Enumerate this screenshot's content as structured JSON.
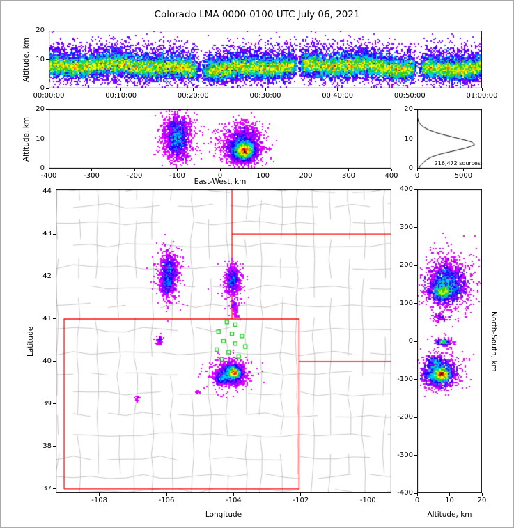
{
  "title": "Colorado LMA 0000-0100 UTC July 06, 2021",
  "axis_labels": {
    "time_height_y": "Altitude, km",
    "ew_y": "Altitude, km",
    "ew_x": "East-West, km",
    "map_y": "Latitude",
    "map_x": "Longitude",
    "ns_x": "Altitude, km",
    "ns_y_right": "North-South, km"
  },
  "colors": {
    "state_border": "#ff0000",
    "county_line": "#c6c6c6",
    "station": "#00cc00",
    "histogram_line": "#000000",
    "axis": "#000000",
    "background": "#ffffff",
    "speckle_dark": "#0d0d0d",
    "speckle_light": "#e6e6e6"
  },
  "chart_data": {
    "type": "scatter",
    "description": "Lightning Mapping Array VHF source density: time-height, east-west height, plan view map, north-south height, and altitude histogram panels",
    "speckle_above": 0.96,
    "colormap_stops": [
      [
        0.0,
        "#e000ff"
      ],
      [
        0.035,
        "#8000ff"
      ],
      [
        0.07,
        "#2200ff"
      ],
      [
        0.11,
        "#0077ff"
      ],
      [
        0.16,
        "#00ccff"
      ],
      [
        0.22,
        "#00dd77"
      ],
      [
        0.29,
        "#33cc00"
      ],
      [
        0.37,
        "#bbee00"
      ],
      [
        0.46,
        "#ffff00"
      ],
      [
        0.56,
        "#ffaa00"
      ],
      [
        0.66,
        "#ff5500"
      ],
      [
        0.76,
        "#ee0000"
      ],
      [
        0.85,
        "#aa0000"
      ],
      [
        0.92,
        "#500000"
      ]
    ],
    "panels": {
      "time_height": {
        "xlim": [
          0,
          3600
        ],
        "ylim": [
          0,
          20
        ],
        "x_ticks": [
          {
            "v": 0,
            "label": "00:00:00"
          },
          {
            "v": 600,
            "label": "00:10:00"
          },
          {
            "v": 1200,
            "label": "00:20:00"
          },
          {
            "v": 1800,
            "label": "00:30:00"
          },
          {
            "v": 2400,
            "label": "00:40:00"
          },
          {
            "v": 3000,
            "label": "00:50:00"
          },
          {
            "v": 3600,
            "label": "01:00:00"
          }
        ],
        "y_ticks": [
          {
            "v": 0,
            "label": "0"
          },
          {
            "v": 10,
            "label": "10"
          },
          {
            "v": 20,
            "label": "20"
          }
        ],
        "bands": [
          {
            "t0": 0,
            "t1": 3600,
            "alt": 7.3,
            "sig": 1.8,
            "n": 26000
          },
          {
            "t0": 0,
            "t1": 3600,
            "alt": 7.8,
            "sig": 3.4,
            "n": 7000
          },
          {
            "t0": 0,
            "t1": 3600,
            "alt": 12.5,
            "sig": 2.2,
            "n": 1500
          }
        ],
        "gaps": [
          {
            "t": 1265,
            "w": 45
          },
          {
            "t": 2075,
            "w": 35
          },
          {
            "t": 3070,
            "w": 45
          }
        ]
      },
      "ew_height": {
        "xlim": [
          -400,
          400
        ],
        "ylim": [
          0,
          20
        ],
        "x_ticks": [
          {
            "v": -400,
            "label": "-400"
          },
          {
            "v": -300,
            "label": "-300"
          },
          {
            "v": -200,
            "label": "-200"
          },
          {
            "v": -100,
            "label": "-100"
          },
          {
            "v": 0,
            "label": "0"
          },
          {
            "v": 100,
            "label": "100"
          },
          {
            "v": 200,
            "label": "200"
          },
          {
            "v": 300,
            "label": "300"
          },
          {
            "v": 400,
            "label": "400"
          }
        ],
        "y_ticks": [
          {
            "v": 0,
            "label": "0"
          },
          {
            "v": 10,
            "label": "10"
          },
          {
            "v": 20,
            "label": "20"
          }
        ],
        "clusters": [
          {
            "x": -100,
            "y": 9.5,
            "sx": 13,
            "sy": 3.2,
            "n": 1600
          },
          {
            "x": -100,
            "y": 11,
            "sx": 22,
            "sy": 4.2,
            "n": 500
          },
          {
            "x": -103,
            "y": 14.5,
            "sx": 14,
            "sy": 1.8,
            "n": 250
          },
          {
            "x": 55,
            "y": 6.3,
            "sx": 17,
            "sy": 2.1,
            "n": 2800
          },
          {
            "x": 58,
            "y": 6.0,
            "sx": 8,
            "sy": 1.2,
            "n": 1400
          },
          {
            "x": 48,
            "y": 8.5,
            "sx": 28,
            "sy": 3.5,
            "n": 800
          },
          {
            "x": 60,
            "y": 12,
            "sx": 15,
            "sy": 2,
            "n": 250
          }
        ]
      },
      "histogram": {
        "xlim": [
          0,
          7000
        ],
        "ylim": [
          0,
          20
        ],
        "x_ticks": [
          {
            "v": 0,
            "label": "0"
          },
          {
            "v": 5000,
            "label": "5000"
          }
        ],
        "y_ticks": [
          {
            "v": 0,
            "label": "0"
          },
          {
            "v": 10,
            "label": "10"
          },
          {
            "v": 20,
            "label": "20"
          }
        ],
        "annotation": "216,472 sources",
        "profile": {
          "alt_km": [
            0,
            1,
            2,
            3,
            4,
            5,
            6,
            7,
            8,
            9,
            10,
            11,
            12,
            13,
            14,
            15,
            16,
            17,
            18,
            19,
            20
          ],
          "counts": [
            150,
            350,
            650,
            1000,
            1600,
            2600,
            4000,
            5300,
            6200,
            5900,
            4700,
            3400,
            2200,
            1300,
            700,
            330,
            140,
            50,
            15,
            4,
            0
          ]
        }
      },
      "plan_view": {
        "xlim": [
          -109.3,
          -99.3
        ],
        "ylim": [
          36.9,
          44.05
        ],
        "x_ticks": [
          {
            "v": -108,
            "label": "-108"
          },
          {
            "v": -106,
            "label": "-106"
          },
          {
            "v": -104,
            "label": "-104"
          },
          {
            "v": -102,
            "label": "-102"
          },
          {
            "v": -100,
            "label": "-100"
          }
        ],
        "y_ticks": [
          {
            "v": 37,
            "label": "37"
          },
          {
            "v": 38,
            "label": "38"
          },
          {
            "v": 39,
            "label": "39"
          },
          {
            "v": 40,
            "label": "40"
          },
          {
            "v": 41,
            "label": "41"
          },
          {
            "v": 42,
            "label": "42"
          },
          {
            "v": 43,
            "label": "43"
          },
          {
            "v": 44,
            "label": "44"
          }
        ],
        "clusters": [
          {
            "x": -105.9,
            "y": 42.18,
            "sx": 0.12,
            "sy": 0.17,
            "n": 800
          },
          {
            "x": -105.98,
            "y": 41.8,
            "sx": 0.1,
            "sy": 0.13,
            "n": 550
          },
          {
            "x": -105.92,
            "y": 42.0,
            "sx": 0.22,
            "sy": 0.34,
            "n": 260
          },
          {
            "x": -104.02,
            "y": 41.93,
            "sx": 0.1,
            "sy": 0.15,
            "n": 600
          },
          {
            "x": -104.0,
            "y": 41.78,
            "sx": 0.17,
            "sy": 0.28,
            "n": 200
          },
          {
            "x": -103.97,
            "y": 41.33,
            "sx": 0.05,
            "sy": 0.09,
            "n": 60
          },
          {
            "x": -104.05,
            "y": 39.72,
            "sx": 0.18,
            "sy": 0.12,
            "n": 1900
          },
          {
            "x": -103.97,
            "y": 39.74,
            "sx": 0.075,
            "sy": 0.055,
            "n": 950
          },
          {
            "x": -104.38,
            "y": 39.6,
            "sx": 0.1,
            "sy": 0.07,
            "n": 350
          },
          {
            "x": -104.1,
            "y": 39.73,
            "sx": 0.32,
            "sy": 0.2,
            "n": 320
          },
          {
            "x": -106.2,
            "y": 40.5,
            "sx": 0.05,
            "sy": 0.07,
            "n": 60
          },
          {
            "x": -106.87,
            "y": 39.12,
            "sx": 0.035,
            "sy": 0.035,
            "n": 25
          },
          {
            "x": -105.07,
            "y": 39.26,
            "sx": 0.03,
            "sy": 0.03,
            "n": 12
          },
          {
            "x": -103.95,
            "y": 41.12,
            "sx": 0.05,
            "sy": 0.05,
            "n": 20
          }
        ]
      },
      "ns_height": {
        "xlim": [
          0,
          20
        ],
        "ylim": [
          -400,
          400
        ],
        "x_ticks": [
          {
            "v": 0,
            "label": "0"
          },
          {
            "v": 10,
            "label": "10"
          },
          {
            "v": 20,
            "label": "20"
          }
        ],
        "y_ticks": [
          {
            "v": 400,
            "label": "400"
          },
          {
            "v": 300,
            "label": "300"
          },
          {
            "v": 200,
            "label": "200"
          },
          {
            "v": 100,
            "label": "100"
          },
          {
            "v": 0,
            "label": "0"
          },
          {
            "v": -100,
            "label": "-100"
          },
          {
            "v": -200,
            "label": "-200"
          },
          {
            "v": -300,
            "label": "-300"
          },
          {
            "v": -400,
            "label": "-400"
          }
        ],
        "clusters": [
          {
            "x": 9,
            "y": 150,
            "sx": 3.0,
            "sy": 26,
            "n": 1700
          },
          {
            "x": 8,
            "y": 128,
            "sx": 1.5,
            "sy": 11,
            "n": 800
          },
          {
            "x": 10,
            "y": 165,
            "sx": 4.5,
            "sy": 42,
            "n": 450
          },
          {
            "x": 7,
            "y": 62,
            "sx": 1.3,
            "sy": 7,
            "n": 70
          },
          {
            "x": 8,
            "y": -2,
            "sx": 1.5,
            "sy": 6,
            "n": 170
          },
          {
            "x": 8,
            "y": -3,
            "sx": 0.8,
            "sy": 3,
            "n": 90
          },
          {
            "x": 7,
            "y": -85,
            "sx": 2.3,
            "sy": 17,
            "n": 1600
          },
          {
            "x": 7.5,
            "y": -88,
            "sx": 1.1,
            "sy": 8,
            "n": 850
          },
          {
            "x": 5.5,
            "y": -50,
            "sx": 1.3,
            "sy": 7,
            "n": 160
          },
          {
            "x": 8,
            "y": -78,
            "sx": 3.5,
            "sy": 28,
            "n": 320
          }
        ]
      }
    },
    "map_overlays": {
      "state_lines": [
        [
          [
            -109.05,
            37.0
          ],
          [
            -109.05,
            41.0
          ],
          [
            -102.05,
            41.0
          ],
          [
            -102.05,
            37.0
          ],
          [
            -109.05,
            37.0
          ]
        ],
        [
          [
            -104.05,
            44.05
          ],
          [
            -104.05,
            41.0
          ]
        ],
        [
          [
            -104.05,
            43.0
          ],
          [
            -99.3,
            43.0
          ]
        ],
        [
          [
            -102.05,
            40.0
          ],
          [
            -99.3,
            40.0
          ]
        ]
      ],
      "stations": [
        [
          -104.2,
          40.93
        ],
        [
          -103.95,
          40.87
        ],
        [
          -104.45,
          40.7
        ],
        [
          -104.05,
          40.65
        ],
        [
          -103.75,
          40.6
        ],
        [
          -104.3,
          40.48
        ],
        [
          -103.95,
          40.42
        ],
        [
          -103.65,
          40.35
        ],
        [
          -104.5,
          40.28
        ],
        [
          -104.15,
          40.22
        ],
        [
          -103.85,
          40.12
        ],
        [
          -104.35,
          40.05
        ]
      ],
      "county_grid": {
        "lon_start": -109.25,
        "lon_step": 0.52,
        "lat_start": 36.95,
        "lat_step": 0.46,
        "jitter": 0.06,
        "keep": 0.8,
        "seed": 7
      }
    }
  }
}
